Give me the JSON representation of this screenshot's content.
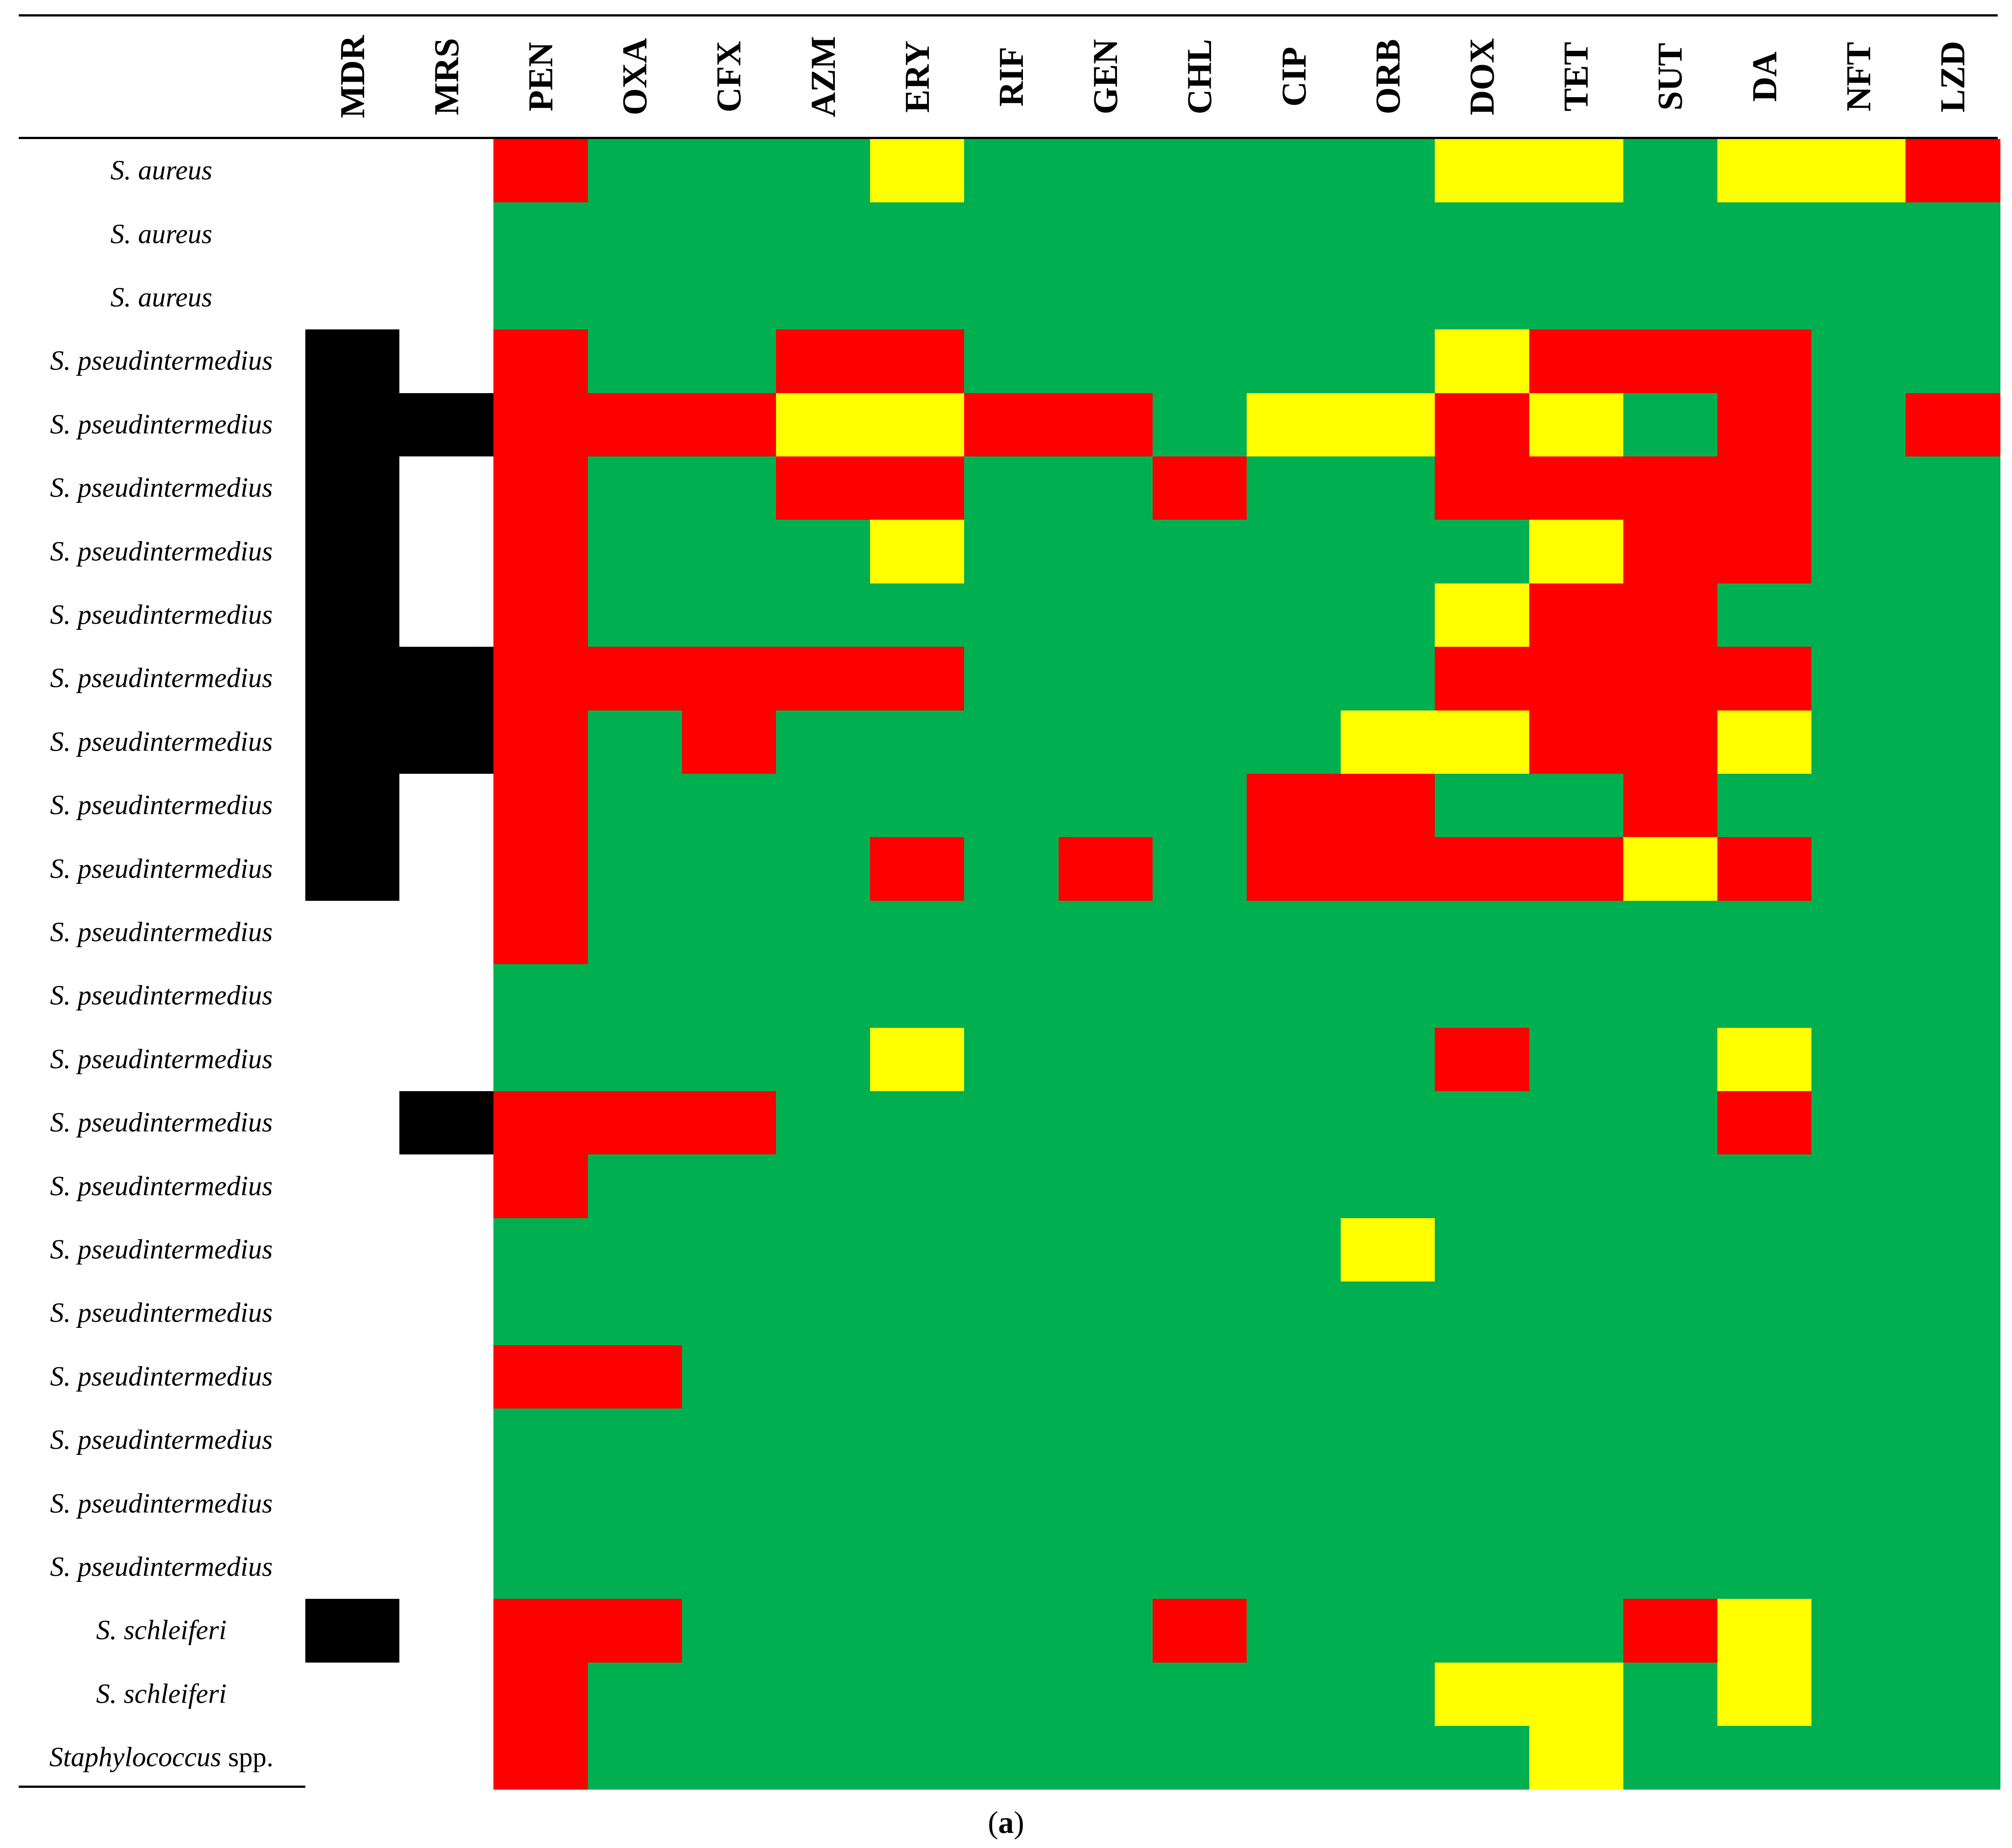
{
  "chart_data": {
    "type": "heatmap",
    "columns": [
      "MDR",
      "MRS",
      "PEN",
      "OXA",
      "CFX",
      "AZM",
      "ERY",
      "RIF",
      "GEN",
      "CHL",
      "CIP",
      "ORB",
      "DOX",
      "TET",
      "SUT",
      "DA",
      "NFT",
      "LZD"
    ],
    "rows": [
      {
        "label": "S. aureus",
        "cells": [
          ".",
          ".",
          "R",
          "G",
          "G",
          "G",
          "Y",
          "G",
          "G",
          "G",
          "G",
          "G",
          "Y",
          "Y",
          "G",
          "Y",
          "Y",
          "R"
        ]
      },
      {
        "label": "S. aureus",
        "cells": [
          ".",
          ".",
          "G",
          "G",
          "G",
          "G",
          "G",
          "G",
          "G",
          "G",
          "G",
          "G",
          "G",
          "G",
          "G",
          "G",
          "G",
          "G"
        ]
      },
      {
        "label": "S. aureus",
        "cells": [
          ".",
          ".",
          "G",
          "G",
          "G",
          "G",
          "G",
          "G",
          "G",
          "G",
          "G",
          "G",
          "G",
          "G",
          "G",
          "G",
          "G",
          "G"
        ]
      },
      {
        "label": "S. pseudintermedius",
        "cells": [
          "B",
          ".",
          "R",
          "G",
          "G",
          "R",
          "R",
          "G",
          "G",
          "G",
          "G",
          "G",
          "Y",
          "R",
          "R",
          "R",
          "G",
          "G"
        ]
      },
      {
        "label": "S. pseudintermedius",
        "cells": [
          "B",
          "B",
          "R",
          "R",
          "R",
          "Y",
          "Y",
          "R",
          "R",
          "G",
          "Y",
          "Y",
          "R",
          "Y",
          "G",
          "R",
          "G",
          "R"
        ]
      },
      {
        "label": "S. pseudintermedius",
        "cells": [
          "B",
          ".",
          "R",
          "G",
          "G",
          "R",
          "R",
          "G",
          "G",
          "R",
          "G",
          "G",
          "R",
          "R",
          "R",
          "R",
          "G",
          "G"
        ]
      },
      {
        "label": "S. pseudintermedius",
        "cells": [
          "B",
          ".",
          "R",
          "G",
          "G",
          "G",
          "Y",
          "G",
          "G",
          "G",
          "G",
          "G",
          "G",
          "Y",
          "R",
          "R",
          "G",
          "G"
        ]
      },
      {
        "label": "S. pseudintermedius",
        "cells": [
          "B",
          ".",
          "R",
          "G",
          "G",
          "G",
          "G",
          "G",
          "G",
          "G",
          "G",
          "G",
          "Y",
          "R",
          "R",
          "G",
          "G",
          "G"
        ]
      },
      {
        "label": "S. pseudintermedius",
        "cells": [
          "B",
          "B",
          "R",
          "R",
          "R",
          "R",
          "R",
          "G",
          "G",
          "G",
          "G",
          "G",
          "R",
          "R",
          "R",
          "R",
          "G",
          "G"
        ]
      },
      {
        "label": "S. pseudintermedius",
        "cells": [
          "B",
          "B",
          "R",
          "G",
          "R",
          "G",
          "G",
          "G",
          "G",
          "G",
          "G",
          "Y",
          "Y",
          "R",
          "R",
          "Y",
          "G",
          "G"
        ]
      },
      {
        "label": "S. pseudintermedius",
        "cells": [
          "B",
          ".",
          "R",
          "G",
          "G",
          "G",
          "G",
          "G",
          "G",
          "G",
          "R",
          "R",
          "G",
          "G",
          "R",
          "G",
          "G",
          "G"
        ]
      },
      {
        "label": "S. pseudintermedius",
        "cells": [
          "B",
          ".",
          "R",
          "G",
          "G",
          "G",
          "R",
          "G",
          "R",
          "G",
          "R",
          "R",
          "R",
          "R",
          "Y",
          "R",
          "G",
          "G"
        ]
      },
      {
        "label": "S. pseudintermedius",
        "cells": [
          ".",
          ".",
          "R",
          "G",
          "G",
          "G",
          "G",
          "G",
          "G",
          "G",
          "G",
          "G",
          "G",
          "G",
          "G",
          "G",
          "G",
          "G"
        ]
      },
      {
        "label": "S. pseudintermedius",
        "cells": [
          ".",
          ".",
          "G",
          "G",
          "G",
          "G",
          "G",
          "G",
          "G",
          "G",
          "G",
          "G",
          "G",
          "G",
          "G",
          "G",
          "G",
          "G"
        ]
      },
      {
        "label": "S. pseudintermedius",
        "cells": [
          ".",
          ".",
          "G",
          "G",
          "G",
          "G",
          "Y",
          "G",
          "G",
          "G",
          "G",
          "G",
          "R",
          "G",
          "G",
          "Y",
          "G",
          "G"
        ]
      },
      {
        "label": "S. pseudintermedius",
        "cells": [
          ".",
          "B",
          "R",
          "R",
          "R",
          "G",
          "G",
          "G",
          "G",
          "G",
          "G",
          "G",
          "G",
          "G",
          "G",
          "R",
          "G",
          "G"
        ]
      },
      {
        "label": "S. pseudintermedius",
        "cells": [
          ".",
          ".",
          "R",
          "G",
          "G",
          "G",
          "G",
          "G",
          "G",
          "G",
          "G",
          "G",
          "G",
          "G",
          "G",
          "G",
          "G",
          "G"
        ]
      },
      {
        "label": "S. pseudintermedius",
        "cells": [
          ".",
          ".",
          "G",
          "G",
          "G",
          "G",
          "G",
          "G",
          "G",
          "G",
          "G",
          "Y",
          "G",
          "G",
          "G",
          "G",
          "G",
          "G"
        ]
      },
      {
        "label": "S. pseudintermedius",
        "cells": [
          ".",
          ".",
          "G",
          "G",
          "G",
          "G",
          "G",
          "G",
          "G",
          "G",
          "G",
          "G",
          "G",
          "G",
          "G",
          "G",
          "G",
          "G"
        ]
      },
      {
        "label": "S. pseudintermedius",
        "cells": [
          ".",
          ".",
          "R",
          "R",
          "G",
          "G",
          "G",
          "G",
          "G",
          "G",
          "G",
          "G",
          "G",
          "G",
          "G",
          "G",
          "G",
          "G"
        ]
      },
      {
        "label": "S. pseudintermedius",
        "cells": [
          ".",
          ".",
          "G",
          "G",
          "G",
          "G",
          "G",
          "G",
          "G",
          "G",
          "G",
          "G",
          "G",
          "G",
          "G",
          "G",
          "G",
          "G"
        ]
      },
      {
        "label": "S. pseudintermedius",
        "cells": [
          ".",
          ".",
          "G",
          "G",
          "G",
          "G",
          "G",
          "G",
          "G",
          "G",
          "G",
          "G",
          "G",
          "G",
          "G",
          "G",
          "G",
          "G"
        ]
      },
      {
        "label": "S. pseudintermedius",
        "cells": [
          ".",
          ".",
          "G",
          "G",
          "G",
          "G",
          "G",
          "G",
          "G",
          "G",
          "G",
          "G",
          "G",
          "G",
          "G",
          "G",
          "G",
          "G"
        ]
      },
      {
        "label": "S. schleiferi",
        "cells": [
          "B",
          ".",
          "R",
          "R",
          "G",
          "G",
          "G",
          "G",
          "G",
          "R",
          "G",
          "G",
          "G",
          "G",
          "R",
          "Y",
          "G",
          "G"
        ]
      },
      {
        "label": "S. schleiferi",
        "cells": [
          ".",
          ".",
          "R",
          "G",
          "G",
          "G",
          "G",
          "G",
          "G",
          "G",
          "G",
          "G",
          "Y",
          "Y",
          "G",
          "Y",
          "G",
          "G"
        ]
      },
      {
        "label": "Staphylococcus",
        "label_suffix": "spp.",
        "cells": [
          ".",
          ".",
          "R",
          "G",
          "G",
          "G",
          "G",
          "G",
          "G",
          "G",
          "G",
          "G",
          "G",
          "Y",
          "G",
          "G",
          "G",
          "G"
        ]
      }
    ],
    "caption_letter": "a",
    "colors": {
      "R": "#ff0000",
      "Y": "#ffff00",
      "G": "#00b050",
      "B": "#000000",
      ".": "#ffffff"
    }
  }
}
